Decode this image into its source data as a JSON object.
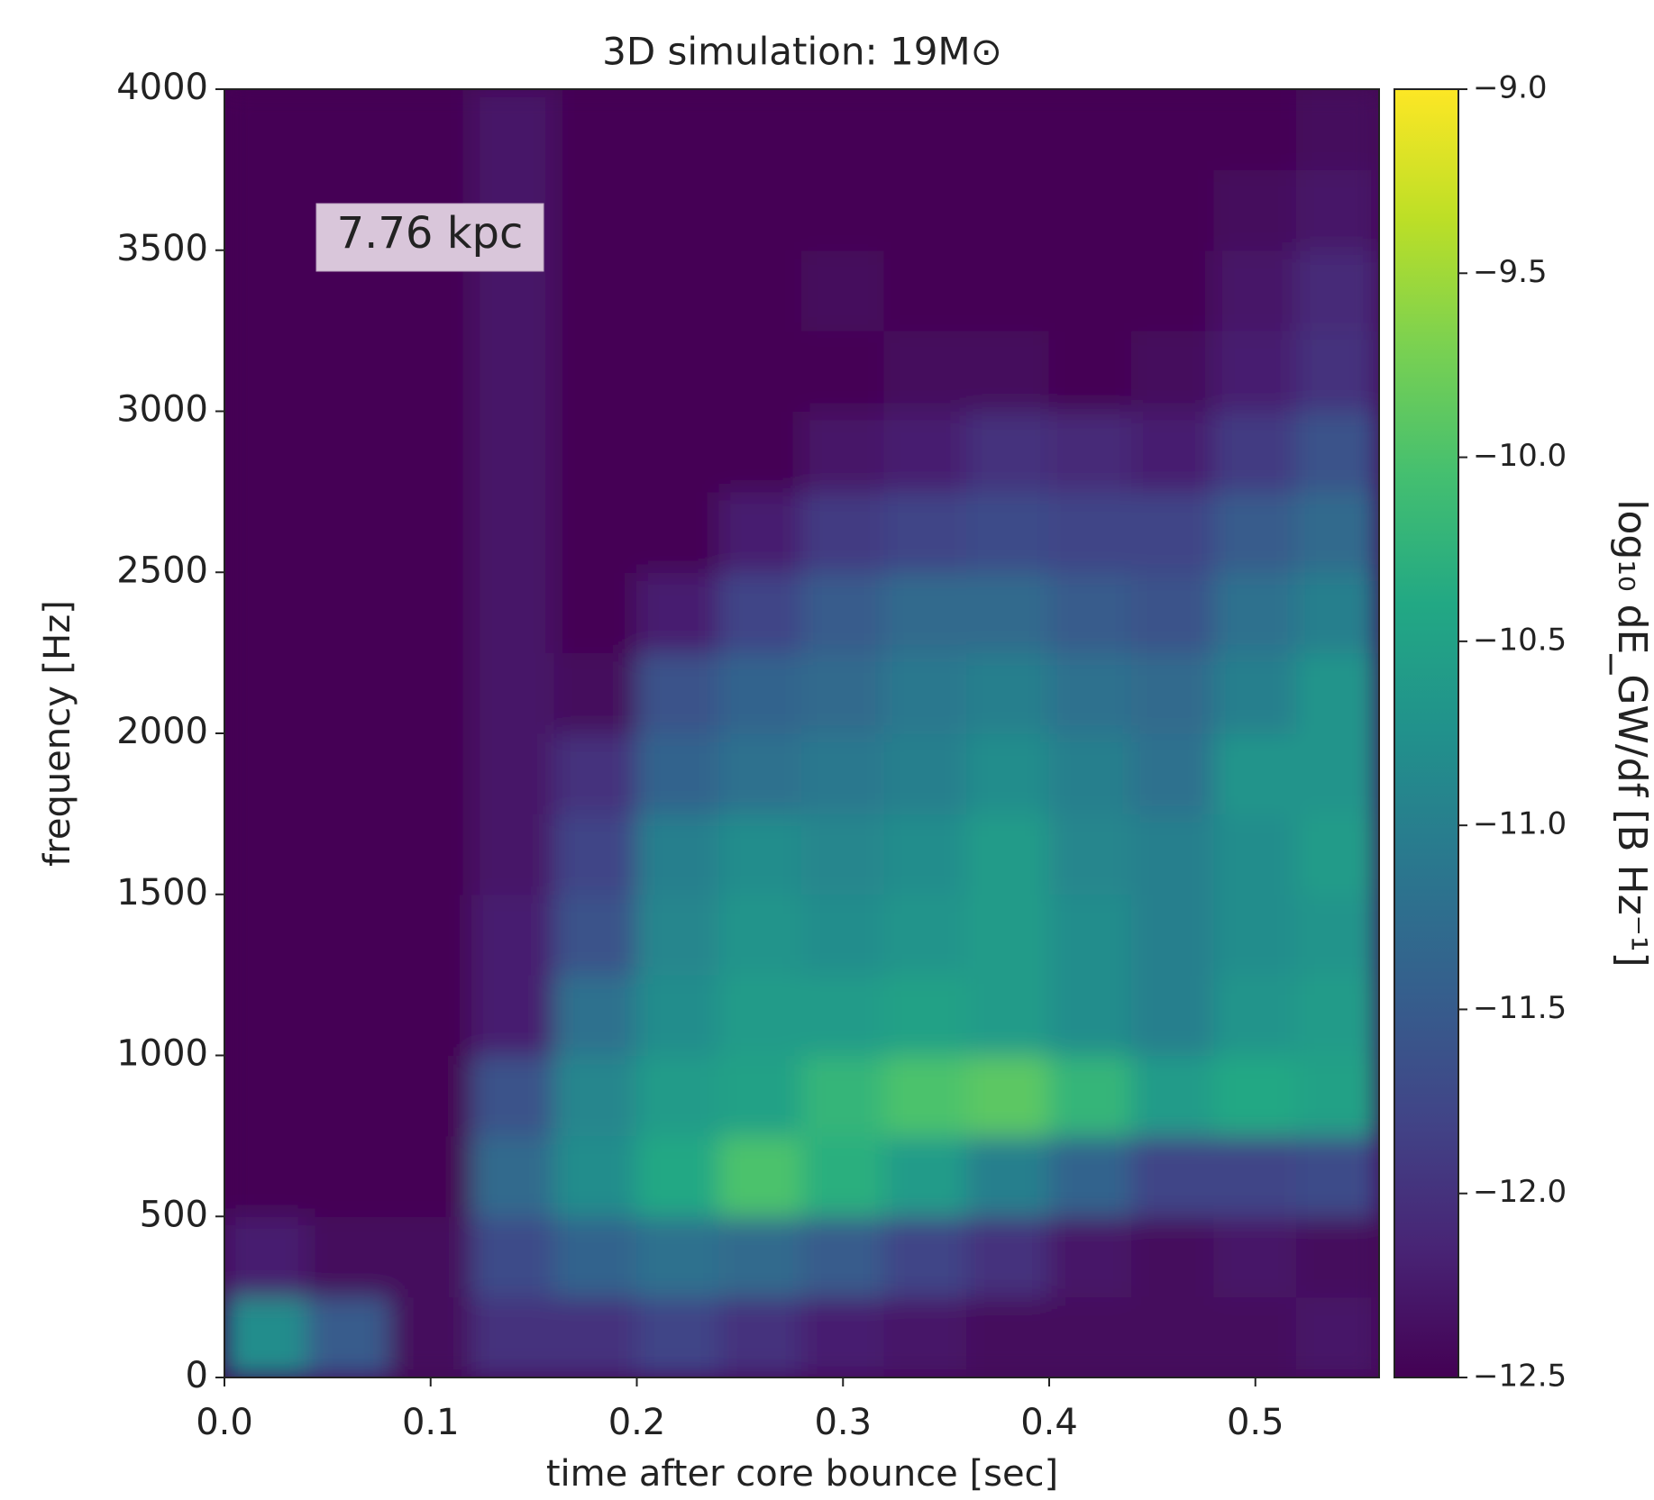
{
  "chart_data": {
    "type": "heatmap",
    "title": "3D simulation: 19M⊙",
    "x_label": "time after core bounce [sec]",
    "y_label": "frequency [Hz]",
    "colorbar_label": "log₁₀ dE_GW/df [B Hz⁻¹]",
    "annotation": "7.76 kpc",
    "colormap": "viridis",
    "xbins": [
      0,
      0.04,
      0.08,
      0.12,
      0.16,
      0.2,
      0.24,
      0.28,
      0.32,
      0.36,
      0.4,
      0.44,
      0.48,
      0.52,
      0.56
    ],
    "ybins": [
      0,
      250,
      500,
      750,
      1000,
      1250,
      1500,
      1750,
      2000,
      2250,
      2500,
      2750,
      3000,
      3250,
      3500,
      3750,
      4000
    ],
    "z": [
      [
        -10.8,
        -11.5,
        -12.4,
        -12.0,
        -12.0,
        -11.8,
        -12.0,
        -12.2,
        -12.3,
        -12.4,
        -12.4,
        -12.4,
        -12.4,
        -12.3
      ],
      [
        -12.2,
        -12.4,
        -12.4,
        -11.7,
        -11.4,
        -11.2,
        -11.3,
        -11.5,
        -11.8,
        -12.0,
        -12.3,
        -12.4,
        -12.3,
        -12.4
      ],
      [
        -12.5,
        -12.5,
        -12.5,
        -11.3,
        -10.8,
        -10.4,
        -10.0,
        -10.3,
        -10.6,
        -11.0,
        -11.4,
        -11.8,
        -11.8,
        -11.7
      ],
      [
        -12.5,
        -12.5,
        -12.5,
        -11.6,
        -10.9,
        -10.6,
        -10.5,
        -10.2,
        -10.0,
        -9.9,
        -10.2,
        -10.6,
        -10.4,
        -10.5
      ],
      [
        -12.5,
        -12.5,
        -12.5,
        -12.2,
        -11.2,
        -10.8,
        -10.6,
        -10.6,
        -10.5,
        -10.6,
        -10.8,
        -11.0,
        -10.7,
        -10.6
      ],
      [
        -12.5,
        -12.5,
        -12.5,
        -12.2,
        -11.6,
        -10.9,
        -10.7,
        -10.8,
        -10.7,
        -10.6,
        -10.8,
        -11.0,
        -10.8,
        -10.7
      ],
      [
        -12.5,
        -12.5,
        -12.5,
        -12.3,
        -11.8,
        -11.0,
        -10.8,
        -10.9,
        -10.8,
        -10.6,
        -10.9,
        -11.0,
        -10.8,
        -10.6
      ],
      [
        -12.5,
        -12.5,
        -12.5,
        -12.3,
        -12.0,
        -11.4,
        -11.2,
        -11.1,
        -11.0,
        -10.8,
        -11.0,
        -11.2,
        -10.7,
        -10.7
      ],
      [
        -12.5,
        -12.5,
        -12.5,
        -12.3,
        -12.4,
        -11.6,
        -11.4,
        -11.3,
        -11.1,
        -11.0,
        -11.2,
        -11.3,
        -11.0,
        -10.7
      ],
      [
        -12.5,
        -12.5,
        -12.5,
        -12.3,
        -12.5,
        -12.2,
        -11.8,
        -11.5,
        -11.3,
        -11.3,
        -11.5,
        -11.6,
        -11.2,
        -11.0
      ],
      [
        -12.5,
        -12.5,
        -12.5,
        -12.3,
        -12.5,
        -12.5,
        -12.2,
        -11.9,
        -11.8,
        -11.7,
        -11.8,
        -11.8,
        -11.5,
        -11.3
      ],
      [
        -12.5,
        -12.5,
        -12.5,
        -12.3,
        -12.5,
        -12.5,
        -12.5,
        -12.3,
        -12.2,
        -12.0,
        -12.1,
        -12.2,
        -11.9,
        -11.6
      ],
      [
        -12.5,
        -12.5,
        -12.5,
        -12.3,
        -12.5,
        -12.5,
        -12.5,
        -12.5,
        -12.4,
        -12.4,
        -12.5,
        -12.4,
        -12.2,
        -12.0
      ],
      [
        -12.5,
        -12.5,
        -12.5,
        -12.3,
        -12.5,
        -12.5,
        -12.5,
        -12.4,
        -12.5,
        -12.5,
        -12.5,
        -12.5,
        -12.3,
        -12.1
      ],
      [
        -12.5,
        -12.5,
        -12.5,
        -12.3,
        -12.5,
        -12.5,
        -12.5,
        -12.5,
        -12.5,
        -12.5,
        -12.5,
        -12.5,
        -12.4,
        -12.3
      ],
      [
        -12.5,
        -12.5,
        -12.5,
        -12.3,
        -12.5,
        -12.5,
        -12.5,
        -12.5,
        -12.5,
        -12.5,
        -12.5,
        -12.5,
        -12.5,
        -12.4
      ]
    ],
    "xlim": [
      0,
      0.56
    ],
    "ylim": [
      0,
      4000
    ],
    "clim": [
      -12.5,
      -9
    ],
    "xticks": [
      {
        "value": 0,
        "label": "0.0"
      },
      0.1,
      0.2,
      0.3,
      0.4,
      0.5
    ],
    "yticks": [
      0,
      500,
      1000,
      1500,
      2000,
      2500,
      3000,
      3500,
      4000
    ],
    "cticks": [
      {
        "value": -9,
        "label": "−9.0"
      },
      {
        "value": -9.5,
        "label": "−9.5"
      },
      {
        "value": -10,
        "label": "−10.0"
      },
      {
        "value": -10.5,
        "label": "−10.5"
      },
      {
        "value": -11,
        "label": "−11.0"
      },
      {
        "value": -11.5,
        "label": "−11.5"
      },
      {
        "value": -12,
        "label": "−12.0"
      },
      {
        "value": -12.5,
        "label": "−12.5"
      }
    ]
  }
}
